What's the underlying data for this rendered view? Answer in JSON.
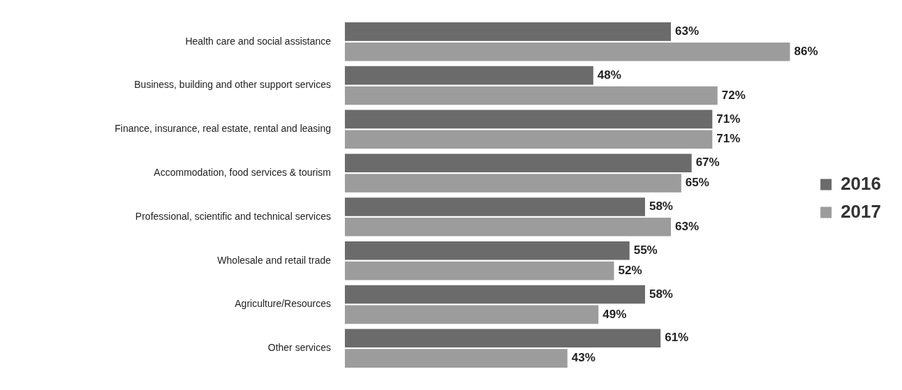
{
  "chart_data": {
    "type": "bar",
    "orientation": "horizontal",
    "categories": [
      "Health care and social assistance",
      "Business, building and other support services",
      "Finance, insurance, real estate, rental and leasing",
      "Accommodation, food services & tourism",
      "Professional, scientific and technical services",
      "Wholesale and retail trade",
      "Agriculture/Resources",
      "Other services"
    ],
    "series": [
      {
        "name": "2016",
        "color": "#6b6b6b",
        "values": [
          63,
          48,
          71,
          67,
          58,
          55,
          58,
          61
        ],
        "value_labels": [
          "63%",
          "48%",
          "71%",
          "67%",
          "58%",
          "55%",
          "58%",
          "61%"
        ]
      },
      {
        "name": "2017",
        "color": "#9c9c9c",
        "values": [
          86,
          72,
          71,
          65,
          63,
          52,
          49,
          43
        ],
        "value_labels": [
          "86%",
          "72%",
          "71%",
          "65%",
          "63%",
          "52%",
          "49%",
          "43%"
        ]
      }
    ],
    "legend": "right",
    "tick_labels": "y",
    "grid": false
  }
}
